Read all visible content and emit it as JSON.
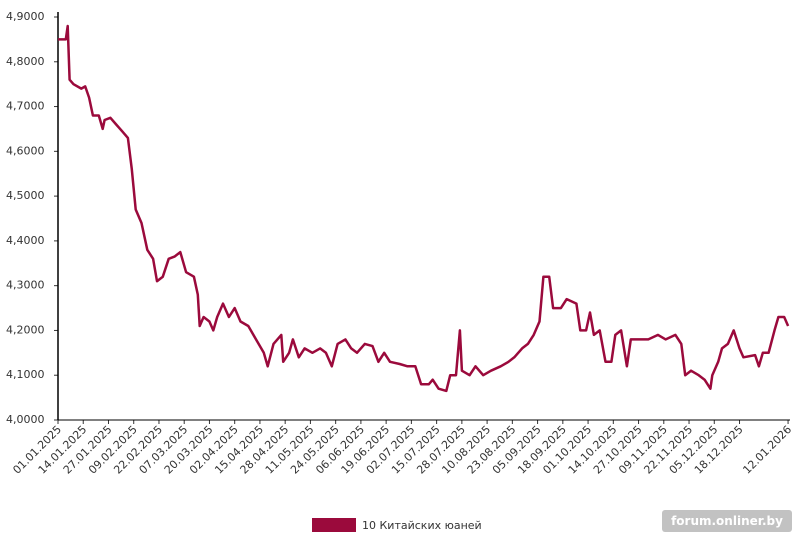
{
  "chart_data": {
    "type": "line",
    "x": [
      "01.01.2025",
      "05.01.2025",
      "06.01.2025",
      "07.01.2025",
      "09.01.2025",
      "13.01.2025",
      "15.01.2025",
      "17.01.2025",
      "19.01.2025",
      "22.01.2025",
      "24.01.2025",
      "25.01.2025",
      "28.01.2025",
      "31.01.2025",
      "03.02.2025",
      "06.02.2025",
      "08.02.2025",
      "10.02.2025",
      "13.02.2025",
      "16.02.2025",
      "19.02.2025",
      "21.02.2025",
      "24.02.2025",
      "27.02.2025",
      "02.03.2025",
      "05.03.2025",
      "08.03.2025",
      "12.03.2025",
      "14.03.2025",
      "15.03.2025",
      "17.03.2025",
      "20.03.2025",
      "22.03.2025",
      "24.03.2025",
      "27.03.2025",
      "30.03.2025",
      "02.04.2025",
      "05.04.2025",
      "09.04.2025",
      "13.04.2025",
      "17.04.2025",
      "19.04.2025",
      "22.04.2025",
      "26.04.2025",
      "27.04.2025",
      "30.04.2025",
      "02.05.2025",
      "05.05.2025",
      "08.05.2025",
      "12.05.2025",
      "16.05.2025",
      "19.05.2025",
      "22.05.2025",
      "25.05.2025",
      "29.05.2025",
      "01.06.2025",
      "04.06.2025",
      "08.06.2025",
      "12.06.2025",
      "15.06.2025",
      "18.06.2025",
      "21.06.2025",
      "26.06.2025",
      "30.06.2025",
      "04.07.2025",
      "07.07.2025",
      "11.07.2025",
      "13.07.2025",
      "16.07.2025",
      "20.07.2025",
      "22.07.2025",
      "25.07.2025",
      "27.07.2025",
      "28.07.2025",
      "01.08.2025",
      "04.08.2025",
      "08.08.2025",
      "12.08.2025",
      "17.08.2025",
      "21.08.2025",
      "24.08.2025",
      "28.08.2025",
      "31.08.2025",
      "03.09.2025",
      "06.09.2025",
      "08.09.2025",
      "11.09.2025",
      "13.09.2025",
      "17.09.2025",
      "20.09.2025",
      "25.09.2025",
      "27.09.2025",
      "30.09.2025",
      "02.10.2025",
      "04.10.2025",
      "07.10.2025",
      "10.10.2025",
      "13.10.2025",
      "15.10.2025",
      "18.10.2025",
      "21.10.2025",
      "23.10.2025",
      "27.10.2025",
      "01.11.2025",
      "06.11.2025",
      "10.11.2025",
      "15.11.2025",
      "18.11.2025",
      "20.11.2025",
      "23.11.2025",
      "27.11.2025",
      "30.11.2025",
      "03.12.2025",
      "04.12.2025",
      "07.12.2025",
      "09.12.2025",
      "12.12.2025",
      "15.12.2025",
      "18.12.2025",
      "20.12.2025",
      "26.12.2025",
      "28.12.2025",
      "30.12.2025",
      "02.01.2026",
      "05.01.2026",
      "07.01.2026",
      "10.01.2026",
      "12.01.2026"
    ],
    "series": [
      {
        "name": "10 Китайских юаней",
        "color": "#9b0a3c",
        "values": [
          4.85,
          4.85,
          4.88,
          4.76,
          4.75,
          4.74,
          4.745,
          4.72,
          4.68,
          4.68,
          4.65,
          4.67,
          4.675,
          4.66,
          4.645,
          4.63,
          4.56,
          4.47,
          4.44,
          4.38,
          4.36,
          4.31,
          4.32,
          4.36,
          4.365,
          4.375,
          4.33,
          4.32,
          4.28,
          4.21,
          4.23,
          4.22,
          4.2,
          4.23,
          4.26,
          4.23,
          4.25,
          4.22,
          4.21,
          4.18,
          4.15,
          4.12,
          4.17,
          4.19,
          4.13,
          4.15,
          4.18,
          4.14,
          4.16,
          4.15,
          4.16,
          4.15,
          4.12,
          4.17,
          4.18,
          4.16,
          4.15,
          4.17,
          4.165,
          4.13,
          4.15,
          4.13,
          4.125,
          4.12,
          4.12,
          4.08,
          4.08,
          4.09,
          4.07,
          4.065,
          4.1,
          4.1,
          4.2,
          4.11,
          4.1,
          4.12,
          4.1,
          4.11,
          4.12,
          4.13,
          4.14,
          4.16,
          4.17,
          4.19,
          4.22,
          4.32,
          4.32,
          4.25,
          4.25,
          4.27,
          4.26,
          4.2,
          4.2,
          4.24,
          4.19,
          4.2,
          4.13,
          4.13,
          4.19,
          4.2,
          4.12,
          4.18,
          4.18,
          4.18,
          4.19,
          4.18,
          4.19,
          4.17,
          4.1,
          4.11,
          4.1,
          4.09,
          4.07,
          4.1,
          4.13,
          4.16,
          4.17,
          4.2,
          4.16,
          4.14,
          4.145,
          4.12,
          4.15,
          4.15,
          4.2,
          4.23,
          4.23,
          4.21
        ]
      }
    ],
    "xlim": [
      "01.01.2025",
      "13.01.2026"
    ],
    "xticks": [
      "01.01.2025",
      "14.01.2025",
      "27.01.2025",
      "09.02.2025",
      "22.02.2025",
      "07.03.2025",
      "20.03.2025",
      "02.04.2025",
      "15.04.2025",
      "28.04.2025",
      "11.05.2025",
      "24.05.2025",
      "06.06.2025",
      "19.06.2025",
      "02.07.2025",
      "15.07.2025",
      "28.07.2025",
      "10.08.2025",
      "23.08.2025",
      "05.09.2025",
      "18.09.2025",
      "01.10.2025",
      "14.10.2025",
      "27.10.2025",
      "09.11.2025",
      "22.11.2025",
      "05.12.2025",
      "18.12.2025",
      "12.01.2026"
    ],
    "ylim": [
      4.0,
      4.9
    ],
    "yticks": [
      {
        "value": 4.0,
        "label": "4,0000"
      },
      {
        "value": 4.1,
        "label": "4,1000"
      },
      {
        "value": 4.2,
        "label": "4,2000"
      },
      {
        "value": 4.3,
        "label": "4,3000"
      },
      {
        "value": 4.4,
        "label": "4,4000"
      },
      {
        "value": 4.5,
        "label": "4,5000"
      },
      {
        "value": 4.6,
        "label": "4,6000"
      },
      {
        "value": 4.7,
        "label": "4,7000"
      },
      {
        "value": 4.8,
        "label": "4,8000"
      },
      {
        "value": 4.9,
        "label": "4,9000"
      }
    ],
    "watermark": "forum.onliner.by"
  }
}
